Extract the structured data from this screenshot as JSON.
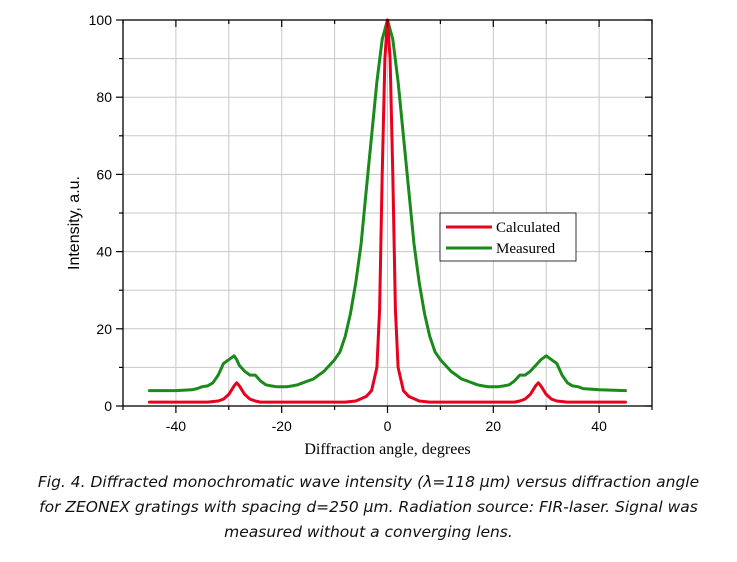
{
  "chart_data": {
    "type": "line",
    "xlabel": "Diffraction angle, degrees",
    "ylabel": "Intensity, a.u.",
    "xlim": [
      -50,
      50
    ],
    "ylim": [
      0,
      100
    ],
    "xticks": [
      -40,
      -20,
      0,
      20,
      40
    ],
    "yticks": [
      0,
      20,
      40,
      60,
      80,
      100
    ],
    "grid": true,
    "legend_position": "center-right",
    "series": [
      {
        "name": "Calculated",
        "color": "#e8001e",
        "x": [
          -45,
          -40,
          -34,
          -32,
          -31,
          -30,
          -29,
          -28.5,
          -28,
          -27,
          -26,
          -25,
          -24,
          -22,
          -18,
          -12,
          -8,
          -6,
          -4,
          -3,
          -2,
          -1.5,
          -1,
          -0.5,
          0,
          0.5,
          1,
          1.5,
          2,
          3,
          4,
          6,
          8,
          12,
          18,
          22,
          24,
          25,
          26,
          27,
          28,
          28.5,
          29,
          30,
          31,
          32,
          34,
          40,
          45
        ],
        "y": [
          1,
          1,
          1,
          1.3,
          1.8,
          3,
          5.2,
          6,
          5.2,
          3,
          1.8,
          1.3,
          1,
          1,
          1,
          1,
          1,
          1.3,
          2.5,
          4,
          10,
          25,
          60,
          90,
          100,
          90,
          60,
          25,
          10,
          4,
          2.5,
          1.3,
          1,
          1,
          1,
          1,
          1,
          1.3,
          1.8,
          3,
          5.2,
          6,
          5.2,
          3,
          1.8,
          1.3,
          1,
          1,
          1
        ]
      },
      {
        "name": "Measured",
        "color": "#1a8a1a",
        "x": [
          -45,
          -40,
          -37,
          -36,
          -35,
          -34,
          -33,
          -32,
          -31,
          -30,
          -29,
          -28.5,
          -28,
          -27,
          -26,
          -25,
          -24,
          -23,
          -22,
          -21,
          -20,
          -19,
          -18,
          -17,
          -16,
          -15,
          -14,
          -13,
          -12,
          -11,
          -10,
          -9,
          -8,
          -7,
          -6,
          -5,
          -4,
          -3,
          -2,
          -1,
          0,
          1,
          2,
          3,
          4,
          5,
          6,
          7,
          8,
          9,
          10,
          11,
          12,
          13,
          14,
          15,
          16,
          17,
          18,
          19,
          20,
          21,
          22,
          23,
          24,
          25,
          26,
          27,
          28,
          29,
          30,
          31,
          32,
          33,
          34,
          35,
          36,
          37,
          40,
          45
        ],
        "y": [
          4,
          4,
          4.2,
          4.5,
          5,
          5.2,
          6,
          8,
          11,
          12,
          13,
          12,
          10.5,
          9,
          8,
          8,
          6.5,
          5.5,
          5.2,
          5,
          5,
          5,
          5.2,
          5.5,
          6,
          6.5,
          7,
          8,
          9,
          10.5,
          12,
          14,
          18,
          24,
          32,
          42,
          56,
          70,
          84,
          95,
          100,
          95,
          84,
          70,
          56,
          42,
          32,
          24,
          18,
          14,
          12,
          10.5,
          9,
          8,
          7,
          6.5,
          6,
          5.5,
          5.2,
          5,
          5,
          5,
          5.2,
          5.5,
          6.5,
          8,
          8,
          9,
          10.5,
          12,
          13,
          12,
          11,
          8,
          6,
          5.2,
          5,
          4.5,
          4.2,
          4
        ]
      }
    ]
  },
  "caption": {
    "line1": "Fig. 4. Diffracted monochromatic wave intensity (λ=118 μm) versus diffraction angle",
    "line2": "for ZEONEX gratings with spacing d=250 μm. Radiation source: FIR-laser. Signal was",
    "line3": "measured without a converging lens."
  }
}
